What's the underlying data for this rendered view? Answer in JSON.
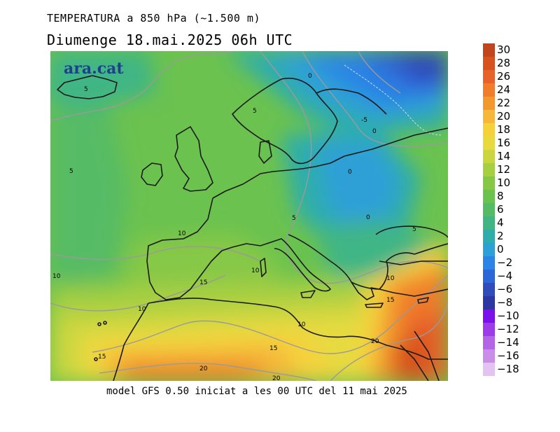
{
  "title_line1": "TEMPERATURA a 850 hPa (~1.500 m)",
  "title_line2": "Diumenge  18.mai.2025 06h UTC",
  "brand": "ara.cat",
  "footer": "model GFS 0.50 iniciat a les 00 UTC del 11 mai 2025",
  "legend": {
    "labels": [
      "30",
      "28",
      "26",
      "24",
      "22",
      "20",
      "18",
      "16",
      "14",
      "12",
      "10",
      "8",
      "6",
      "4",
      "2",
      "0",
      "−2",
      "−4",
      "−6",
      "−8",
      "−10",
      "−12",
      "−14",
      "−16",
      "−18"
    ],
    "colors": [
      "#c0461e",
      "#d7521f",
      "#e8632a",
      "#ef7d2b",
      "#f2992e",
      "#f5b83a",
      "#f5d23c",
      "#e6da3f",
      "#c9d640",
      "#a7cf42",
      "#86c846",
      "#6bc24f",
      "#56bb65",
      "#41b585",
      "#2fadab",
      "#2da0d6",
      "#2b84e6",
      "#2d66d6",
      "#2f4cb8",
      "#2d37a0",
      "#7b10e8",
      "#9b3ce8",
      "#b365e6",
      "#ca8ee8",
      "#e2c3f1"
    ]
  },
  "contour_labels": {
    "l1": "5",
    "l2": "0",
    "l3": "-5",
    "l4": "0",
    "l5": "5",
    "l6": "5",
    "l7": "0",
    "l8": "0",
    "l9": "5",
    "l10": "5",
    "l11": "10",
    "l12": "10",
    "l13": "15",
    "l14": "10",
    "l15": "10",
    "l16": "15",
    "l17": "10",
    "l18": "10",
    "l19": "15",
    "l20": "20",
    "l21": "15",
    "l22": "20",
    "l23": "20"
  }
}
